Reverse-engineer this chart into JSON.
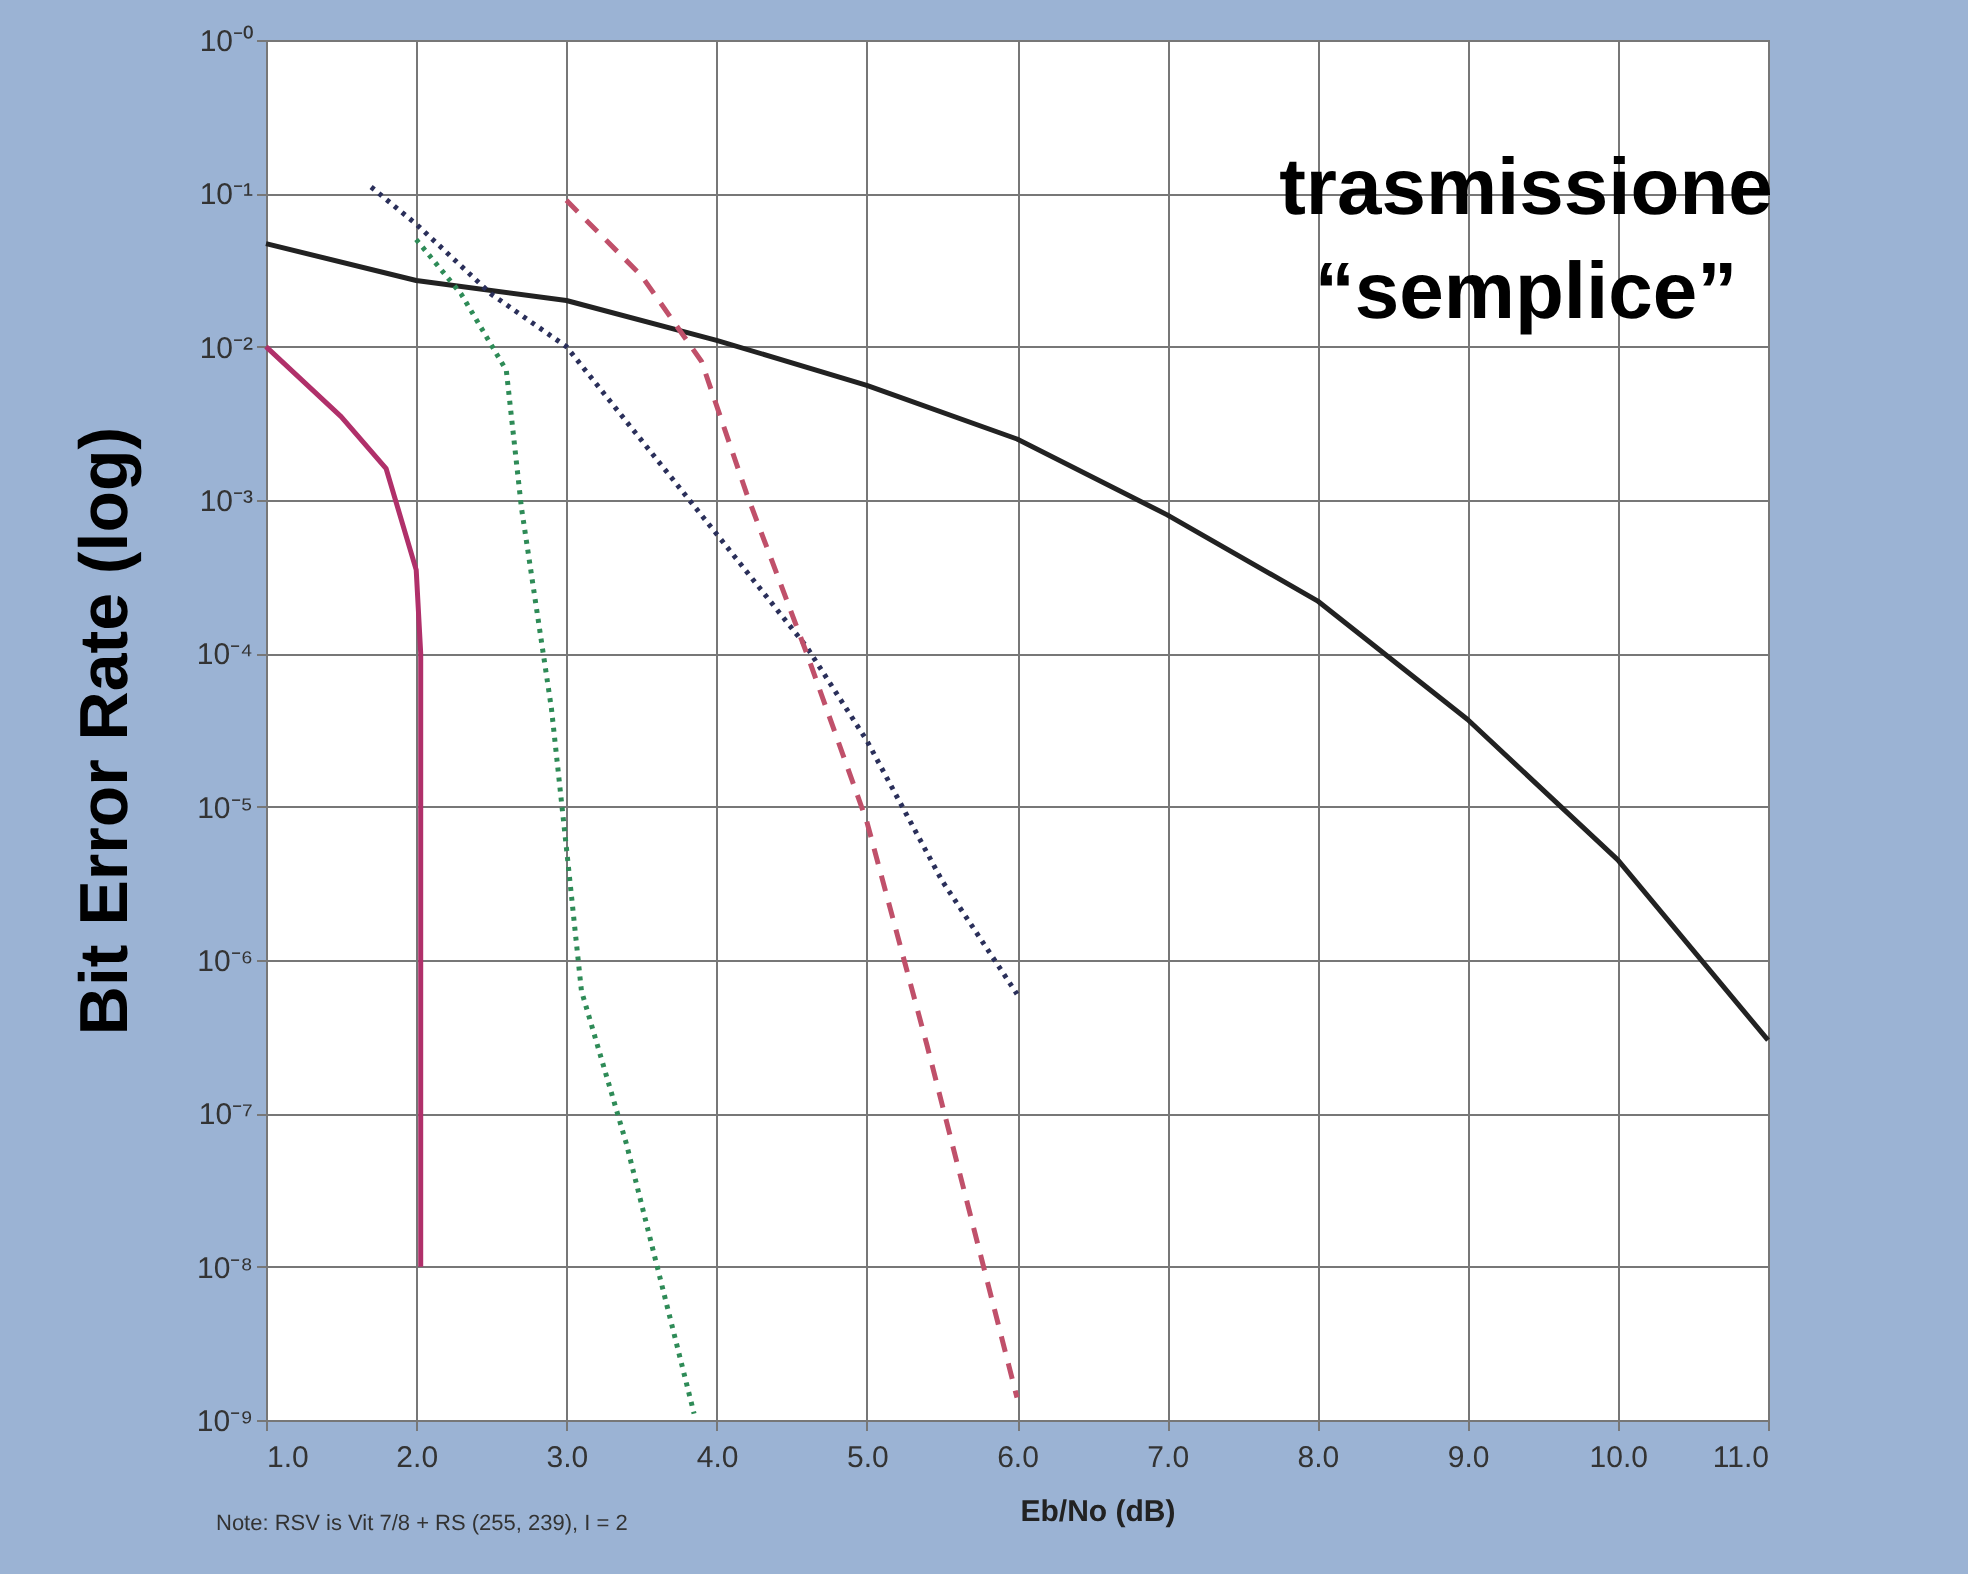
{
  "chart_data": {
    "type": "line",
    "xlabel": "Eb/No (dB)",
    "ylabel": "Bit Error Rate (log)",
    "log": "y",
    "grid": true,
    "marker": "none",
    "xlim": [
      1,
      11
    ],
    "xticks": [
      {
        "value": 1,
        "label": "1.0"
      },
      {
        "value": 2,
        "label": "2.0"
      },
      {
        "value": 3,
        "label": "3.0"
      },
      {
        "value": 4,
        "label": "4.0"
      },
      {
        "value": 5,
        "label": "5.0"
      },
      {
        "value": 6,
        "label": "6.0"
      },
      {
        "value": 7,
        "label": "7.0"
      },
      {
        "value": 8,
        "label": "8.0"
      },
      {
        "value": 9,
        "label": "9.0"
      },
      {
        "value": 10,
        "label": "10.0"
      },
      {
        "value": 11,
        "label": "11.0"
      }
    ],
    "ylim": [
      1e-09,
      1
    ],
    "yticks": [
      {
        "value": 1,
        "label": "10⁻⁰"
      },
      {
        "value": 0.1,
        "label": "10⁻¹"
      },
      {
        "value": 0.01,
        "label": "10⁻²"
      },
      {
        "value": 0.001,
        "label": "10⁻³"
      },
      {
        "value": 0.0001,
        "label": "10⁻⁴"
      },
      {
        "value": 1e-05,
        "label": "10⁻⁵"
      },
      {
        "value": 1e-06,
        "label": "10⁻⁶"
      },
      {
        "value": 1e-07,
        "label": "10⁻⁷"
      },
      {
        "value": 1e-08,
        "label": "10⁻⁸"
      },
      {
        "value": 1e-09,
        "label": "10⁻⁹"
      }
    ],
    "series": [
      {
        "color": "#222222",
        "line_style": "solid",
        "x": [
          1,
          2,
          3,
          4,
          5,
          6,
          7,
          8,
          9,
          10,
          11
        ],
        "values": [
          0.047,
          0.027,
          0.02,
          0.011,
          0.0056,
          0.0025,
          0.0008,
          0.00022,
          3.7e-05,
          4.5e-06,
          3e-07
        ]
      },
      {
        "color": "#2a2f5a",
        "line_style": "dotted",
        "x": [
          1.7,
          2,
          2.5,
          3,
          4,
          4.6,
          5,
          5.5,
          6
        ],
        "values": [
          0.11,
          0.063,
          0.022,
          0.01,
          0.0006,
          0.00011,
          2.7e-05,
          3.3e-06,
          6e-07
        ]
      },
      {
        "color": "#c0506a",
        "line_style": "dashed",
        "x": [
          3,
          3.5,
          3.9,
          4.2,
          4.6,
          5,
          5.4,
          6
        ],
        "values": [
          0.09,
          0.029,
          0.008,
          0.0011,
          0.0001,
          8e-06,
          2.8e-07,
          1.4e-09
        ]
      },
      {
        "color": "#2e8b57",
        "line_style": "dotted",
        "x": [
          2,
          2.3,
          2.6,
          2.7,
          2.9,
          3,
          3.1,
          3.4,
          3.85
        ],
        "values": [
          0.05,
          0.022,
          0.007,
          0.0009,
          4.4e-05,
          5.4e-06,
          6.3e-07,
          6.3e-08,
          1.1e-09
        ]
      },
      {
        "color": "#b0306a",
        "line_style": "solid",
        "x": [
          1,
          1.5,
          1.8,
          2,
          2.03,
          2.03
        ],
        "values": [
          0.01,
          0.0035,
          0.0016,
          0.00035,
          0.0001,
          1e-08
        ]
      }
    ],
    "annotations": [
      "trasmissione “semplice”",
      "Note: RSV is Vit 7/8 + RS (255, 239), I = 2"
    ]
  }
}
